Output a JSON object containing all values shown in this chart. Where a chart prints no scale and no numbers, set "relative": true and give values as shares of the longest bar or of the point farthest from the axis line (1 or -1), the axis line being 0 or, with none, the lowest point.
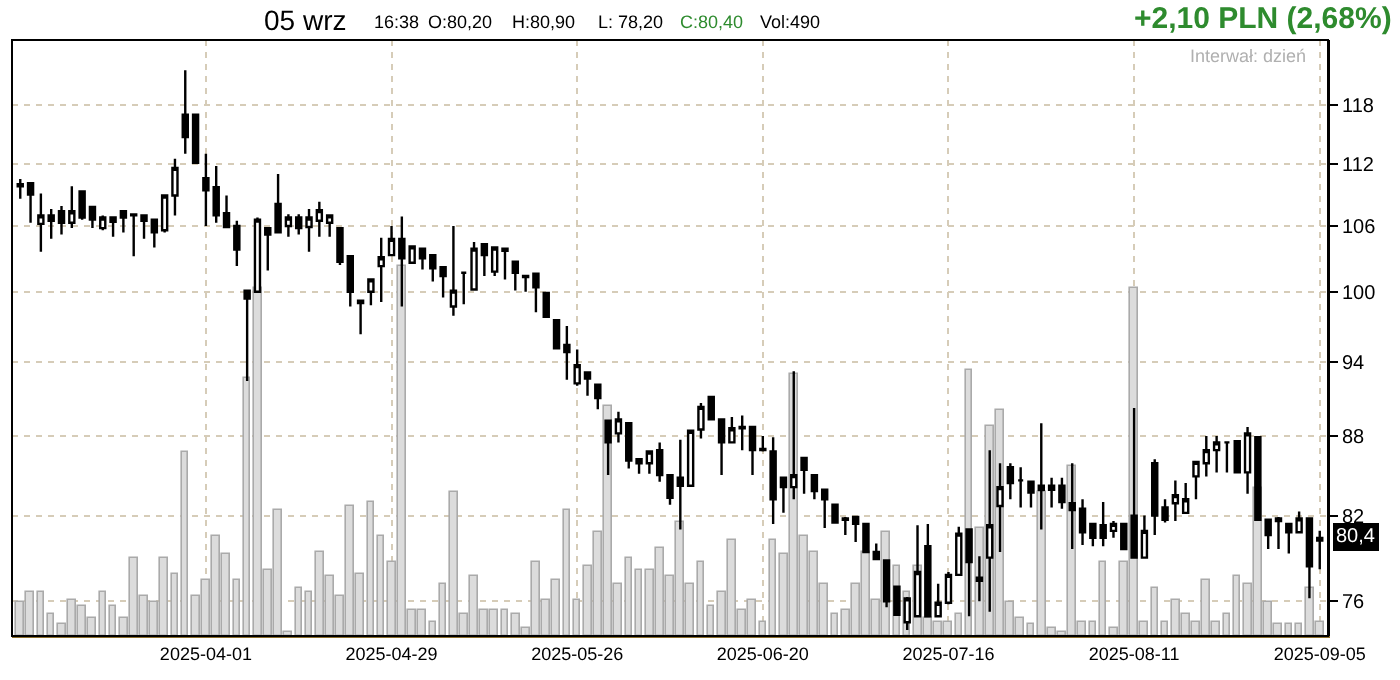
{
  "chart_data": [
    {
      "type": "candlestick",
      "title": "05 wrz",
      "subtitle": "+2,10 PLN (2,68%)",
      "annotations": [
        "16:38",
        "O:80,20",
        "H:80,90",
        "L: 78,20",
        "C:80,40",
        "Vol:490",
        "Interwał: dzień",
        {
          "text": "80,4",
          "y": 80.4
        }
      ],
      "categories": [
        null,
        null,
        null,
        null,
        null,
        null,
        null,
        null,
        null,
        null,
        null,
        null,
        null,
        null,
        null,
        null,
        null,
        null,
        "2025-04-01",
        null,
        null,
        null,
        null,
        null,
        null,
        null,
        null,
        null,
        null,
        null,
        null,
        null,
        null,
        null,
        null,
        null,
        "2025-04-29",
        null,
        null,
        null,
        null,
        null,
        null,
        null,
        null,
        null,
        null,
        null,
        null,
        null,
        null,
        null,
        null,
        null,
        "2025-05-26",
        null,
        null,
        null,
        null,
        null,
        null,
        null,
        null,
        null,
        null,
        null,
        null,
        null,
        null,
        null,
        null,
        null,
        "2025-06-20",
        null,
        null,
        null,
        null,
        null,
        null,
        null,
        null,
        null,
        null,
        null,
        null,
        null,
        null,
        null,
        null,
        null,
        "2025-07-16",
        null,
        null,
        null,
        null,
        null,
        null,
        null,
        null,
        null,
        null,
        null,
        null,
        null,
        null,
        null,
        null,
        null,
        "2025-08-11",
        null,
        null,
        null,
        null,
        null,
        null,
        null,
        null,
        null,
        null,
        null,
        null,
        null,
        null,
        null,
        null,
        null,
        "2025-09-05"
      ],
      "ohlc": [
        [
          110.0,
          110.5,
          108.6,
          109.8
        ],
        [
          110.1,
          110.1,
          106.3,
          109.0
        ],
        [
          106.2,
          109.1,
          103.6,
          107.0
        ],
        [
          107.0,
          107.6,
          104.8,
          106.5
        ],
        [
          107.4,
          107.9,
          105.2,
          106.3
        ],
        [
          106.3,
          109.8,
          105.8,
          107.4
        ],
        [
          109.3,
          109.3,
          106.6,
          106.8
        ],
        [
          107.8,
          107.8,
          105.8,
          106.6
        ],
        [
          105.8,
          107.0,
          105.6,
          106.8
        ],
        [
          106.8,
          106.8,
          105.0,
          106.4
        ],
        [
          107.4,
          107.4,
          105.4,
          106.8
        ],
        [
          107.1,
          107.2,
          103.2,
          107.0
        ],
        [
          107.0,
          107.1,
          104.8,
          106.5
        ],
        [
          106.6,
          106.6,
          104.0,
          105.4
        ],
        [
          105.6,
          109.0,
          105.4,
          108.9
        ],
        [
          108.9,
          112.5,
          107.0,
          111.6
        ],
        [
          117.0,
          121.7,
          113.0,
          114.7
        ],
        [
          117.0,
          117.0,
          112.0,
          112.1
        ],
        [
          110.6,
          113.0,
          106.0,
          109.4
        ],
        [
          109.7,
          111.8,
          106.3,
          107.0
        ],
        [
          107.2,
          108.9,
          105.8,
          105.9
        ],
        [
          106.0,
          106.5,
          102.3,
          103.8
        ],
        [
          100.1,
          100.1,
          92.4,
          99.4
        ],
        [
          100.0,
          106.8,
          100.0,
          106.6
        ],
        [
          105.8,
          105.8,
          101.9,
          105.2
        ],
        [
          108.1,
          111.0,
          105.4,
          105.4
        ],
        [
          106.0,
          107.1,
          105.0,
          106.8
        ],
        [
          106.8,
          107.1,
          105.2,
          105.8
        ],
        [
          105.9,
          107.6,
          103.6,
          106.8
        ],
        [
          106.5,
          108.3,
          105.0,
          107.5
        ],
        [
          106.3,
          107.1,
          105.0,
          107.0
        ],
        [
          105.8,
          105.8,
          102.4,
          102.7
        ],
        [
          103.2,
          103.2,
          98.7,
          100.0
        ],
        [
          99.2,
          99.2,
          96.3,
          99.0
        ],
        [
          100.0,
          101.2,
          98.8,
          101.1
        ],
        [
          102.3,
          104.9,
          99.1,
          103.1
        ],
        [
          103.3,
          106.0,
          103.3,
          104.8
        ],
        [
          104.8,
          106.9,
          98.7,
          103.0
        ],
        [
          102.6,
          104.2,
          102.6,
          104.1
        ],
        [
          103.9,
          103.9,
          102.0,
          103.0
        ],
        [
          103.3,
          103.3,
          100.9,
          102.1
        ],
        [
          102.2,
          102.2,
          99.5,
          101.4
        ],
        [
          98.7,
          106.0,
          97.9,
          100.1
        ],
        [
          101.7,
          101.8,
          98.9,
          101.7
        ],
        [
          100.2,
          104.5,
          100.2,
          103.9
        ],
        [
          104.3,
          104.3,
          101.4,
          103.3
        ],
        [
          101.8,
          104.0,
          101.4,
          104.0
        ],
        [
          103.9,
          104.0,
          101.1,
          103.7
        ],
        [
          102.7,
          102.7,
          100.1,
          101.7
        ],
        [
          101.4,
          101.4,
          100.0,
          101.3
        ],
        [
          101.6,
          101.6,
          98.2,
          100.4
        ],
        [
          99.9,
          99.9,
          97.8,
          97.8
        ],
        [
          97.5,
          97.5,
          95.1,
          95.1
        ],
        [
          95.4,
          97.0,
          92.5,
          94.8
        ],
        [
          92.2,
          95.0,
          92.0,
          93.7
        ],
        [
          93.1,
          93.1,
          91.2,
          92.6
        ],
        [
          92.1,
          92.1,
          90.1,
          91.0
        ],
        [
          89.2,
          89.2,
          85.0,
          87.5
        ],
        [
          88.2,
          89.9,
          87.5,
          89.3
        ],
        [
          89.0,
          89.0,
          85.5,
          86.1
        ],
        [
          86.2,
          86.2,
          85.1,
          85.9
        ],
        [
          85.9,
          86.8,
          85.1,
          86.8
        ],
        [
          86.9,
          87.5,
          84.5,
          85.0
        ],
        [
          85.0,
          85.0,
          82.8,
          83.3
        ],
        [
          84.8,
          87.7,
          81.0,
          84.2
        ],
        [
          84.2,
          88.5,
          84.2,
          88.4
        ],
        [
          88.5,
          90.6,
          87.8,
          90.3
        ],
        [
          91.1,
          91.1,
          89.3,
          89.3
        ],
        [
          89.3,
          89.3,
          85.0,
          87.5
        ],
        [
          87.5,
          89.5,
          87.5,
          88.6
        ],
        [
          88.7,
          89.6,
          86.9,
          88.6
        ],
        [
          88.7,
          88.7,
          85.0,
          86.9
        ],
        [
          87.0,
          88.0,
          86.8,
          86.9
        ],
        [
          86.8,
          87.9,
          81.4,
          83.2
        ],
        [
          84.8,
          84.8,
          82.2,
          84.1
        ],
        [
          84.1,
          93.2,
          83.2,
          85.0
        ],
        [
          86.3,
          86.3,
          83.6,
          85.4
        ],
        [
          85.0,
          85.0,
          83.2,
          83.8
        ],
        [
          83.9,
          83.9,
          81.1,
          83.2
        ],
        [
          82.8,
          82.8,
          81.5,
          81.5
        ],
        [
          81.8,
          81.9,
          80.6,
          81.7
        ],
        [
          81.9,
          81.9,
          80.1,
          81.4
        ],
        [
          81.4,
          81.4,
          79.4,
          79.4
        ],
        [
          79.4,
          80.0,
          78.9,
          78.9
        ],
        [
          78.8,
          78.8,
          75.6,
          76.0
        ],
        [
          77.0,
          77.0,
          75.1,
          75.1
        ],
        [
          74.6,
          76.3,
          74.1,
          76.2
        ],
        [
          75.0,
          81.3,
          75.0,
          78.0
        ],
        [
          79.8,
          81.4,
          75.0,
          75.0
        ],
        [
          75.0,
          77.2,
          75.0,
          75.9
        ],
        [
          75.9,
          78.0,
          75.8,
          77.8
        ],
        [
          77.8,
          81.2,
          77.8,
          80.7
        ],
        [
          81.0,
          81.0,
          75.0,
          78.7
        ],
        [
          77.4,
          79.1,
          76.0,
          77.6
        ],
        [
          79.0,
          86.9,
          75.3,
          81.3
        ],
        [
          82.7,
          85.9,
          79.4,
          84.1
        ],
        [
          85.6,
          85.9,
          83.2,
          84.4
        ],
        [
          84.6,
          85.6,
          82.6,
          84.6
        ],
        [
          84.5,
          84.5,
          82.6,
          83.7
        ],
        [
          83.9,
          89.0,
          81.0,
          84.2
        ],
        [
          83.9,
          84.8,
          82.6,
          84.2
        ],
        [
          84.2,
          84.8,
          82.5,
          83.0
        ],
        [
          82.9,
          85.9,
          79.6,
          82.4
        ],
        [
          82.5,
          83.2,
          79.9,
          80.8
        ],
        [
          81.4,
          81.4,
          79.8,
          80.4
        ],
        [
          81.3,
          83.0,
          79.8,
          80.4
        ],
        [
          80.9,
          81.6,
          80.4,
          81.4
        ],
        [
          81.4,
          81.4,
          79.6,
          79.6
        ],
        [
          82.0,
          90.2,
          79.0,
          79.0
        ],
        [
          79.0,
          82.0,
          79.0,
          80.9
        ],
        [
          85.9,
          86.2,
          80.6,
          82.0
        ],
        [
          82.6,
          83.2,
          81.5,
          81.7
        ],
        [
          82.9,
          84.6,
          81.6,
          83.5
        ],
        [
          82.2,
          84.4,
          82.2,
          83.2
        ],
        [
          84.9,
          86.0,
          83.2,
          86.0
        ],
        [
          85.9,
          88.0,
          84.9,
          86.9
        ],
        [
          86.9,
          88.0,
          85.2,
          87.5
        ],
        [
          87.5,
          87.5,
          85.2,
          87.5
        ],
        [
          87.6,
          87.6,
          85.2,
          85.2
        ],
        [
          85.2,
          88.7,
          83.6,
          88.2
        ],
        [
          87.9,
          87.9,
          81.7,
          81.7
        ],
        [
          81.7,
          81.7,
          79.6,
          80.6
        ],
        [
          81.8,
          81.9,
          79.6,
          81.6
        ],
        [
          81.4,
          81.4,
          79.3,
          80.8
        ],
        [
          80.8,
          82.3,
          80.8,
          81.8
        ],
        [
          81.8,
          81.8,
          76.2,
          78.4
        ],
        [
          80.2,
          80.9,
          78.2,
          80.4
        ]
      ],
      "ylim": [
        73.7,
        125
      ],
      "yticks": [
        76,
        82,
        88,
        94,
        100,
        106,
        112,
        118
      ],
      "log": "y",
      "grid": true
    },
    {
      "type": "bar",
      "relative": true,
      "color": "#dcdcdc",
      "tick_labels": false,
      "categories": [
        null,
        null,
        null,
        null,
        null,
        null,
        null,
        null,
        null,
        null,
        null,
        null,
        null,
        null,
        null,
        null,
        null,
        null,
        "2025-04-01",
        null,
        null,
        null,
        null,
        null,
        null,
        null,
        null,
        null,
        null,
        null,
        null,
        null,
        null,
        null,
        null,
        null,
        "2025-04-29",
        null,
        null,
        null,
        null,
        null,
        null,
        null,
        null,
        null,
        null,
        null,
        null,
        null,
        null,
        null,
        null,
        null,
        "2025-05-26",
        null,
        null,
        null,
        null,
        null,
        null,
        null,
        null,
        null,
        null,
        null,
        null,
        null,
        null,
        null,
        null,
        null,
        "2025-06-20",
        null,
        null,
        null,
        null,
        null,
        null,
        null,
        null,
        null,
        null,
        null,
        null,
        null,
        null,
        null,
        null,
        null,
        "2025-07-16",
        null,
        null,
        null,
        null,
        null,
        null,
        null,
        null,
        null,
        null,
        null,
        null,
        null,
        null,
        null,
        null,
        null,
        "2025-08-11",
        null,
        null,
        null,
        null,
        null,
        null,
        null,
        null,
        null,
        null,
        null,
        null,
        null,
        null,
        null,
        null,
        null,
        "2025-09-05"
      ],
      "values": [
        0.09,
        0.12,
        0.12,
        0.06,
        0.03,
        0.1,
        0.08,
        0.05,
        0.12,
        0.08,
        0.05,
        0.21,
        0.11,
        0.09,
        0.21,
        0.17,
        0.5,
        0.11,
        0.15,
        0.27,
        0.22,
        0.15,
        0.7,
        0.94,
        0.18,
        0.34,
        0.01,
        0.13,
        0.12,
        0.23,
        0.16,
        0.11,
        0.35,
        0.17,
        0.36,
        0.27,
        0.2,
        1,
        0.07,
        0.07,
        0.04,
        0.14,
        0.39,
        0.06,
        0.16,
        0.07,
        0.07,
        0.07,
        0.06,
        0.02,
        0.2,
        0.1,
        0.15,
        0.34,
        0.1,
        0.19,
        0.28,
        0.62,
        0.14,
        0.21,
        0.18,
        0.18,
        0.24,
        0.16,
        0.31,
        0.14,
        0.2,
        0.08,
        0.12,
        0.26,
        0.07,
        0.1,
        0.04,
        0.26,
        0.22,
        0.71,
        0.27,
        0.23,
        0.14,
        0.06,
        0.07,
        0.14,
        0.23,
        0.1,
        0.28,
        0.19,
        0.12,
        0.19,
        0.05,
        0.04,
        0.04,
        0.06,
        0.72,
        0.29,
        0.57,
        0.61,
        0.09,
        0.05,
        0.03,
        0.39,
        0.02,
        0.01,
        0.46,
        0.04,
        0.04,
        0.2,
        0.02,
        0.2,
        0.94,
        0.04,
        0.13,
        0.04,
        0.1,
        0.06,
        0.04,
        0.15,
        0.04,
        0.06,
        0.16,
        0.14,
        0.4,
        0.09,
        0.03,
        0.03,
        0.03,
        0.13,
        0.04
      ]
    }
  ]
}
